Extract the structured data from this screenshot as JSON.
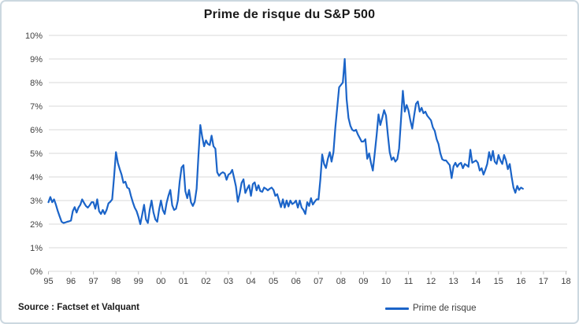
{
  "chart": {
    "title": "Prime de risque du S&P 500",
    "source": "Source : Factset et Valquant",
    "legend_label": "Prime de risque"
  },
  "chart_data": {
    "type": "line",
    "title": "Prime de risque du S&P 500",
    "xlabel": "",
    "ylabel": "",
    "ylim": [
      0,
      10
    ],
    "y_unit": "%",
    "grid": "horizontal",
    "legend_position": "bottom",
    "source": "Source : Factset et Valquant",
    "x_tick_labels": [
      "95",
      "96",
      "97",
      "98",
      "99",
      "00",
      "01",
      "02",
      "03",
      "04",
      "05",
      "06",
      "07",
      "08",
      "09",
      "10",
      "11",
      "12",
      "13",
      "14",
      "15",
      "16",
      "17",
      "18"
    ],
    "y_tick_labels": [
      "0%",
      "1%",
      "2%",
      "3%",
      "4%",
      "5%",
      "6%",
      "7%",
      "8%",
      "9%",
      "10%"
    ],
    "x_axis_span_years": 23,
    "data_start": "1995-01",
    "data_end": "2016-02",
    "points_per_year": 12,
    "colors": {
      "grid": "#d9d9d9",
      "tick": "#bfbfbf",
      "axis_text": "#404040"
    },
    "series": [
      {
        "name": "Prime de risque",
        "color": "#1b64c8",
        "values_monthly": [
          2.93,
          3.15,
          2.93,
          3.05,
          2.82,
          2.55,
          2.32,
          2.1,
          2.05,
          2.07,
          2.1,
          2.12,
          2.15,
          2.55,
          2.72,
          2.49,
          2.7,
          2.82,
          3.05,
          2.9,
          2.77,
          2.7,
          2.8,
          2.93,
          2.93,
          2.65,
          3.05,
          2.55,
          2.43,
          2.6,
          2.43,
          2.6,
          2.88,
          2.95,
          3.05,
          4.0,
          5.05,
          4.6,
          4.33,
          4.1,
          3.75,
          3.8,
          3.55,
          3.5,
          3.2,
          2.93,
          2.7,
          2.55,
          2.3,
          2.0,
          2.4,
          2.82,
          2.2,
          2.05,
          2.6,
          3.0,
          2.5,
          2.2,
          2.1,
          2.6,
          3.0,
          2.6,
          2.43,
          2.9,
          3.2,
          3.45,
          2.8,
          2.6,
          2.65,
          3.0,
          3.8,
          4.4,
          4.5,
          3.4,
          3.1,
          3.45,
          2.93,
          2.77,
          2.95,
          3.5,
          4.9,
          6.2,
          5.7,
          5.3,
          5.55,
          5.4,
          5.35,
          5.75,
          5.3,
          5.2,
          4.2,
          4.05,
          4.15,
          4.2,
          4.15,
          3.88,
          4.1,
          4.15,
          4.3,
          3.95,
          3.6,
          2.95,
          3.3,
          3.75,
          3.9,
          3.32,
          3.5,
          3.65,
          3.2,
          3.7,
          3.77,
          3.43,
          3.65,
          3.4,
          3.37,
          3.55,
          3.5,
          3.43,
          3.5,
          3.55,
          3.45,
          3.2,
          3.27,
          3.0,
          2.72,
          3.05,
          2.7,
          3.0,
          2.75,
          3.0,
          2.85,
          2.9,
          3.0,
          2.7,
          3.0,
          2.7,
          2.6,
          2.43,
          2.93,
          2.77,
          3.1,
          2.83,
          2.95,
          3.05,
          3.05,
          3.9,
          4.95,
          4.55,
          4.38,
          4.77,
          5.05,
          4.65,
          5.05,
          6.1,
          6.95,
          7.8,
          7.9,
          8.0,
          9.0,
          7.3,
          6.5,
          6.17,
          6.0,
          5.95,
          6.0,
          5.8,
          5.65,
          5.5,
          5.5,
          5.6,
          4.77,
          5.0,
          4.6,
          4.27,
          5.0,
          5.77,
          6.65,
          6.2,
          6.5,
          6.83,
          6.6,
          5.77,
          5.05,
          4.72,
          4.83,
          4.65,
          4.75,
          5.2,
          6.4,
          7.65,
          6.77,
          7.05,
          6.82,
          6.4,
          6.05,
          6.6,
          7.1,
          7.2,
          6.77,
          6.93,
          6.7,
          6.77,
          6.6,
          6.5,
          6.4,
          6.1,
          5.95,
          5.6,
          5.4,
          5.0,
          4.75,
          4.7,
          4.7,
          4.6,
          4.5,
          3.95,
          4.45,
          4.6,
          4.43,
          4.55,
          4.6,
          4.37,
          4.55,
          4.5,
          4.43,
          5.15,
          4.6,
          4.65,
          4.7,
          4.6,
          4.27,
          4.37,
          4.1,
          4.3,
          4.55,
          5.05,
          4.7,
          5.1,
          4.65,
          4.55,
          4.93,
          4.7,
          4.55,
          4.93,
          4.7,
          4.33,
          4.55,
          4.0,
          3.55,
          3.33,
          3.62,
          3.45,
          3.55,
          3.5
        ]
      }
    ]
  }
}
